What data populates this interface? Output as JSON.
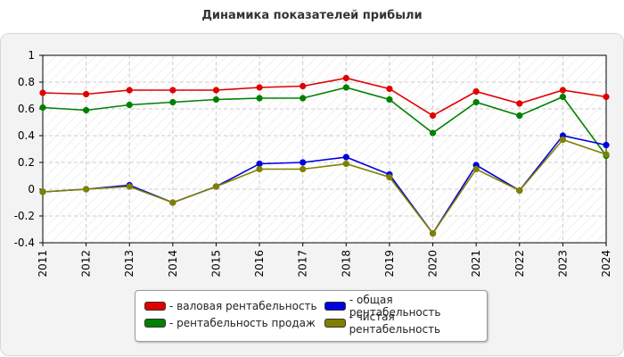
{
  "chart_data": {
    "type": "line",
    "title": "Динамика показателей прибыли",
    "xlabel": "",
    "ylabel": "",
    "ylim": [
      -0.4,
      1
    ],
    "yticks": [
      "1",
      "0.8",
      "0.6",
      "0.4",
      "0.2",
      "0",
      "-0.2",
      "-0.4"
    ],
    "grid": true,
    "legend_position": "bottom",
    "x": [
      "2011",
      "2012",
      "2013",
      "2014",
      "2015",
      "2016",
      "2017",
      "2018",
      "2019",
      "2020",
      "2021",
      "2022",
      "2023",
      "2024"
    ],
    "series": [
      {
        "name": "- валовая рентабельность",
        "color": "#e00000",
        "values": [
          0.72,
          0.71,
          0.74,
          0.74,
          0.74,
          0.76,
          0.77,
          0.83,
          0.75,
          0.55,
          0.73,
          0.64,
          0.74,
          0.69
        ]
      },
      {
        "name": "- рентабельность продаж",
        "color": "#008000",
        "values": [
          0.61,
          0.59,
          0.63,
          0.65,
          0.67,
          0.68,
          0.68,
          0.76,
          0.67,
          0.42,
          0.65,
          0.55,
          0.69,
          0.25
        ]
      },
      {
        "name": "- общая рентабельность",
        "color": "#0000e0",
        "values": [
          -0.02,
          0.0,
          0.03,
          -0.1,
          0.02,
          0.19,
          0.2,
          0.24,
          0.11,
          -0.33,
          0.18,
          -0.01,
          0.4,
          0.33
        ]
      },
      {
        "name": "- чистая рентабельность",
        "color": "#808000",
        "values": [
          -0.02,
          0.0,
          0.02,
          -0.1,
          0.02,
          0.15,
          0.15,
          0.19,
          0.09,
          -0.33,
          0.15,
          -0.01,
          0.37,
          0.26
        ]
      }
    ]
  }
}
